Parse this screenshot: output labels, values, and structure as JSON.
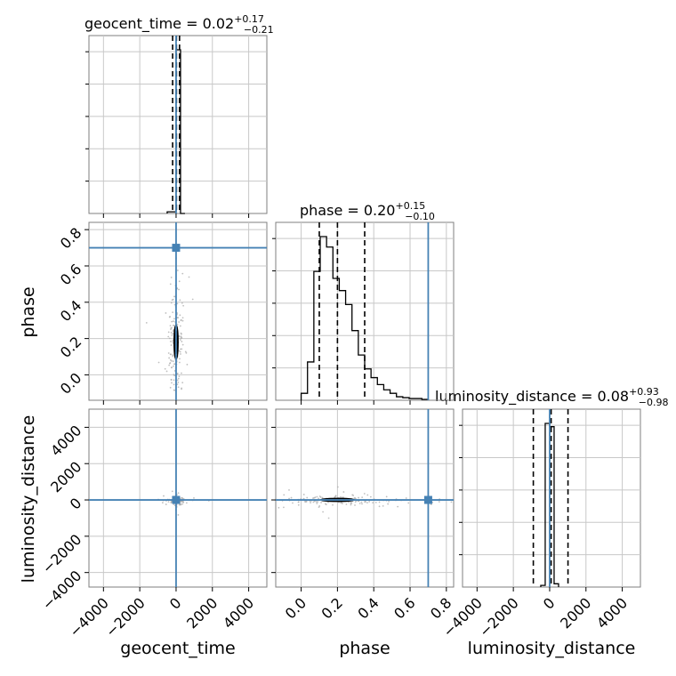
{
  "chart_data": {
    "type": "corner",
    "params": [
      "geocent_time",
      "phase",
      "luminosity_distance"
    ],
    "axis_labels": {
      "geocent_time": "geocent_time",
      "phase": "phase",
      "luminosity_distance": "luminosity_distance"
    },
    "titles": [
      {
        "param": "geocent_time",
        "text": "geocent_time = 0.02",
        "sup": "+0.17",
        "sub": "−0.21"
      },
      {
        "param": "phase",
        "text": "phase = 0.20",
        "sup": "+0.15",
        "sub": "−0.10"
      },
      {
        "param": "luminosity_distance",
        "text": "luminosity_distance = 0.08",
        "sup": "+0.93",
        "sub": "−0.98"
      }
    ],
    "ranges": {
      "geocent_time": [
        -4800,
        5000
      ],
      "phase": [
        -0.14,
        0.84
      ],
      "luminosity_distance": [
        -4800,
        5000
      ]
    },
    "ticks": {
      "geocent_time": [
        -4000,
        -2000,
        0,
        2000,
        4000
      ],
      "phase": [
        0.0,
        0.2,
        0.4,
        0.6,
        0.8
      ],
      "luminosity_distance": [
        -4000,
        -2000,
        0,
        2000,
        4000
      ]
    },
    "tick_labels": {
      "geocent_time": [
        "−4000",
        "−2000",
        "0",
        "2000",
        "4000"
      ],
      "phase": [
        "0.0",
        "0.2",
        "0.4",
        "0.6",
        "0.8"
      ],
      "luminosity_distance": [
        "−4000",
        "−2000",
        "0",
        "2000",
        "4000"
      ]
    },
    "truths": {
      "geocent_time": 0,
      "phase": 0.7,
      "luminosity_distance": 0
    },
    "quantiles": {
      "geocent_time": [
        -190,
        20,
        190
      ],
      "phase": [
        0.1,
        0.2,
        0.35
      ],
      "luminosity_distance": [
        -900,
        80,
        1010
      ]
    },
    "histograms": {
      "geocent_time": {
        "edges": [
          -490,
          -245,
          0,
          245,
          490
        ],
        "counts": [
          0.01,
          0.01,
          1.0,
          0.0
        ]
      },
      "phase": {
        "edges": [
          0.0,
          0.035,
          0.07,
          0.105,
          0.14,
          0.175,
          0.21,
          0.245,
          0.28,
          0.315,
          0.35,
          0.385,
          0.42,
          0.455,
          0.49,
          0.525,
          0.56,
          0.595,
          0.63,
          0.665,
          0.7
        ],
        "counts": [
          0.04,
          0.22,
          0.74,
          0.94,
          0.88,
          0.7,
          0.63,
          0.55,
          0.4,
          0.26,
          0.18,
          0.13,
          0.09,
          0.06,
          0.04,
          0.02,
          0.015,
          0.01,
          0.01,
          0.005
        ]
      },
      "luminosity_distance": {
        "edges": [
          -490,
          -245,
          0,
          245,
          490
        ],
        "counts": [
          0.01,
          1.0,
          0.98,
          0.02
        ]
      }
    },
    "contours": {
      "geocent_time__phase": {
        "center": [
          0,
          0.18
        ],
        "scale": [
          200,
          0.17
        ]
      },
      "geocent_time__luminosity_distance": {
        "center": [
          80,
          -50
        ],
        "scale": [
          150,
          100
        ]
      },
      "phase__luminosity_distance": {
        "center": [
          0.2,
          0
        ],
        "scale": [
          0.17,
          150
        ]
      }
    },
    "grid": true,
    "colors": {
      "hist": "#000000",
      "truth": "#4682b4",
      "contour": "#000000",
      "sample": "#b0b0b0"
    }
  }
}
